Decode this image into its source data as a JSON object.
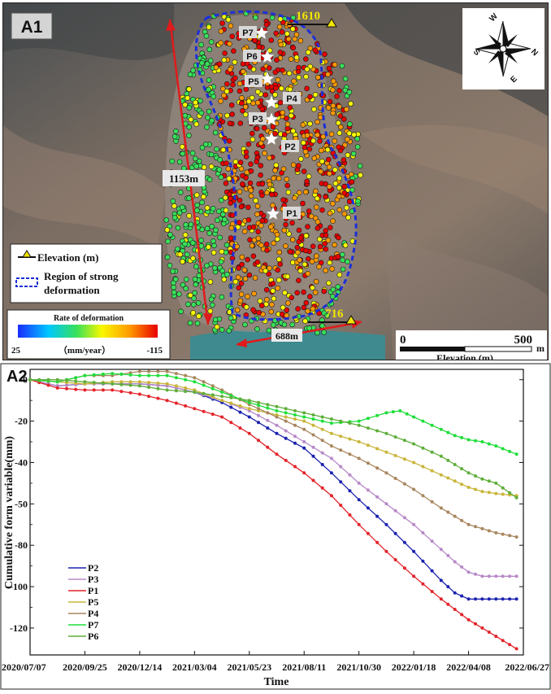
{
  "panel_a1": {
    "label": "A1",
    "length_label": "1153m",
    "width_label": "688m",
    "top_elevation": "1610",
    "bottom_elevation": "716",
    "points": [
      "P7",
      "P6",
      "P5",
      "P4",
      "P3",
      "P2",
      "P1"
    ],
    "legend": {
      "elevation_label": "Elevation (m)",
      "region_label_line1": "Region of strong",
      "region_label_line2": "deformation"
    },
    "colorbar": {
      "title": "Rate of deformation",
      "min_label": "25",
      "unit_label": "（mm/year）",
      "max_label": "-115",
      "colors": [
        "#1a2cff",
        "#00c8ff",
        "#38e05a",
        "#f8f800",
        "#ff9a00",
        "#e80000"
      ]
    },
    "compass": [
      "W",
      "N",
      "E",
      "S"
    ],
    "scalebar": {
      "left_label": "0",
      "right_label": "500",
      "unit_label": "m",
      "caption": "Elevation (m)"
    },
    "colors": {
      "boundary": "#1d2fd6",
      "arrow": "#e01b1b",
      "elevation_text": "#f2e600"
    }
  },
  "chart_data": {
    "panel_label": "A2",
    "type": "line",
    "xlabel": "Time",
    "ylabel": "Cumulative form variable(mm)",
    "x_tick_labels": [
      "2020/07/07",
      "2020/09/25",
      "2020/12/14",
      "2021/03/04",
      "2021/05/23",
      "2021/08/11",
      "2021/10/30",
      "2022/01/18",
      "2022/04/08",
      "2022/06/27"
    ],
    "x_range": [
      "2020/07/07",
      "2022/06/27"
    ],
    "y_tick_labels": [
      "0",
      "-20",
      "-40",
      "-50",
      "-80",
      "-100",
      "-120"
    ],
    "series": [
      {
        "name": "P2",
        "color": "#1b22b0",
        "values": [
          [
            0,
            0
          ],
          [
            40,
            -3
          ],
          [
            80,
            -2
          ],
          [
            120,
            -2
          ],
          [
            160,
            -2
          ],
          [
            200,
            -3
          ],
          [
            240,
            -6
          ],
          [
            280,
            -11
          ],
          [
            320,
            -18
          ],
          [
            360,
            -26
          ],
          [
            400,
            -33
          ],
          [
            440,
            -45
          ],
          [
            480,
            -58
          ],
          [
            520,
            -70
          ],
          [
            560,
            -83
          ],
          [
            600,
            -97
          ],
          [
            620,
            -103
          ],
          [
            640,
            -106
          ],
          [
            660,
            -106
          ],
          [
            680,
            -106
          ],
          [
            710,
            -106
          ]
        ]
      },
      {
        "name": "P3",
        "color": "#b889c7",
        "values": [
          [
            0,
            0
          ],
          [
            40,
            -3
          ],
          [
            80,
            -2
          ],
          [
            120,
            -2
          ],
          [
            160,
            -2
          ],
          [
            200,
            -3
          ],
          [
            240,
            -6
          ],
          [
            280,
            -10
          ],
          [
            320,
            -15
          ],
          [
            360,
            -22
          ],
          [
            400,
            -30
          ],
          [
            440,
            -38
          ],
          [
            480,
            -50
          ],
          [
            520,
            -60
          ],
          [
            560,
            -70
          ],
          [
            600,
            -82
          ],
          [
            620,
            -88
          ],
          [
            640,
            -93
          ],
          [
            660,
            -95
          ],
          [
            680,
            -95
          ],
          [
            710,
            -95
          ]
        ]
      },
      {
        "name": "P1",
        "color": "#e3232a",
        "values": [
          [
            0,
            0
          ],
          [
            40,
            -4
          ],
          [
            80,
            -5
          ],
          [
            120,
            -5
          ],
          [
            160,
            -7
          ],
          [
            200,
            -10
          ],
          [
            240,
            -14
          ],
          [
            280,
            -18
          ],
          [
            320,
            -26
          ],
          [
            360,
            -36
          ],
          [
            400,
            -45
          ],
          [
            440,
            -56
          ],
          [
            480,
            -70
          ],
          [
            520,
            -83
          ],
          [
            560,
            -95
          ],
          [
            600,
            -106
          ],
          [
            620,
            -111
          ],
          [
            640,
            -116
          ],
          [
            660,
            -120
          ],
          [
            680,
            -124
          ],
          [
            710,
            -130
          ]
        ]
      },
      {
        "name": "P5",
        "color": "#c9b53a",
        "values": [
          [
            0,
            0
          ],
          [
            40,
            -1
          ],
          [
            80,
            -2
          ],
          [
            120,
            -1
          ],
          [
            160,
            -1
          ],
          [
            200,
            -2
          ],
          [
            240,
            -5
          ],
          [
            280,
            -10
          ],
          [
            320,
            -14
          ],
          [
            360,
            -17
          ],
          [
            400,
            -20
          ],
          [
            440,
            -26
          ],
          [
            480,
            -30
          ],
          [
            520,
            -35
          ],
          [
            560,
            -40
          ],
          [
            600,
            -46
          ],
          [
            620,
            -49
          ],
          [
            640,
            -52
          ],
          [
            660,
            -54
          ],
          [
            680,
            -55
          ],
          [
            710,
            -56
          ]
        ]
      },
      {
        "name": "P4",
        "color": "#a8865e",
        "values": [
          [
            0,
            0
          ],
          [
            40,
            -1
          ],
          [
            80,
            2
          ],
          [
            120,
            2
          ],
          [
            160,
            4
          ],
          [
            200,
            4
          ],
          [
            240,
            1
          ],
          [
            280,
            -5
          ],
          [
            320,
            -12
          ],
          [
            360,
            -18
          ],
          [
            400,
            -24
          ],
          [
            440,
            -32
          ],
          [
            480,
            -38
          ],
          [
            520,
            -45
          ],
          [
            560,
            -53
          ],
          [
            600,
            -62
          ],
          [
            620,
            -66
          ],
          [
            640,
            -70
          ],
          [
            660,
            -72
          ],
          [
            680,
            -74
          ],
          [
            710,
            -76
          ]
        ]
      },
      {
        "name": "P7",
        "color": "#1fde3a",
        "values": [
          [
            0,
            0
          ],
          [
            40,
            -1
          ],
          [
            80,
            2
          ],
          [
            120,
            3
          ],
          [
            160,
            2
          ],
          [
            200,
            2
          ],
          [
            240,
            -1
          ],
          [
            280,
            -6
          ],
          [
            320,
            -11
          ],
          [
            360,
            -15
          ],
          [
            400,
            -18
          ],
          [
            440,
            -21
          ],
          [
            480,
            -20
          ],
          [
            520,
            -16
          ],
          [
            540,
            -15
          ],
          [
            560,
            -18
          ],
          [
            600,
            -24
          ],
          [
            620,
            -27
          ],
          [
            640,
            -29
          ],
          [
            660,
            -30
          ],
          [
            680,
            -32
          ],
          [
            710,
            -36
          ]
        ]
      },
      {
        "name": "P6",
        "color": "#5fae3a",
        "values": [
          [
            0,
            0
          ],
          [
            40,
            0
          ],
          [
            80,
            -1
          ],
          [
            120,
            -2
          ],
          [
            160,
            -3
          ],
          [
            200,
            -5
          ],
          [
            240,
            -6
          ],
          [
            280,
            -8
          ],
          [
            320,
            -10
          ],
          [
            360,
            -13
          ],
          [
            400,
            -16
          ],
          [
            440,
            -19
          ],
          [
            480,
            -22
          ],
          [
            520,
            -26
          ],
          [
            560,
            -31
          ],
          [
            600,
            -37
          ],
          [
            620,
            -41
          ],
          [
            640,
            -45
          ],
          [
            660,
            -48
          ],
          [
            680,
            -50
          ],
          [
            710,
            -57
          ]
        ]
      }
    ]
  }
}
